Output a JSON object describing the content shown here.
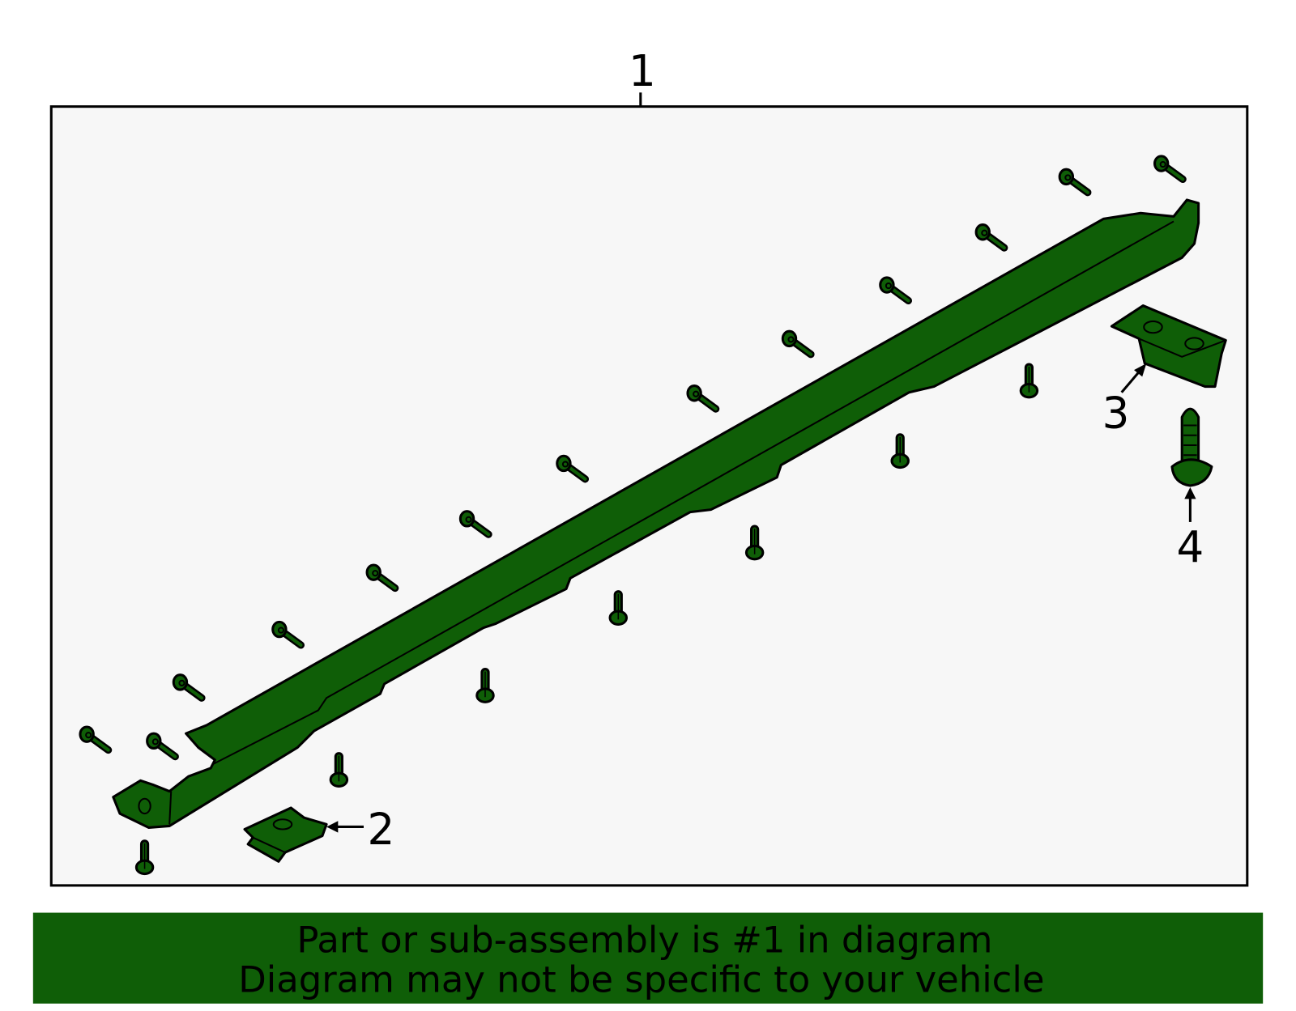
{
  "callouts": [
    {
      "label": "1"
    },
    {
      "label": "2"
    },
    {
      "label": "3"
    },
    {
      "label": "4"
    }
  ],
  "footer": {
    "lines": [
      "Part or sub-assembly is #1 in diagram",
      "Diagram may not be specific to your vehicle"
    ]
  }
}
